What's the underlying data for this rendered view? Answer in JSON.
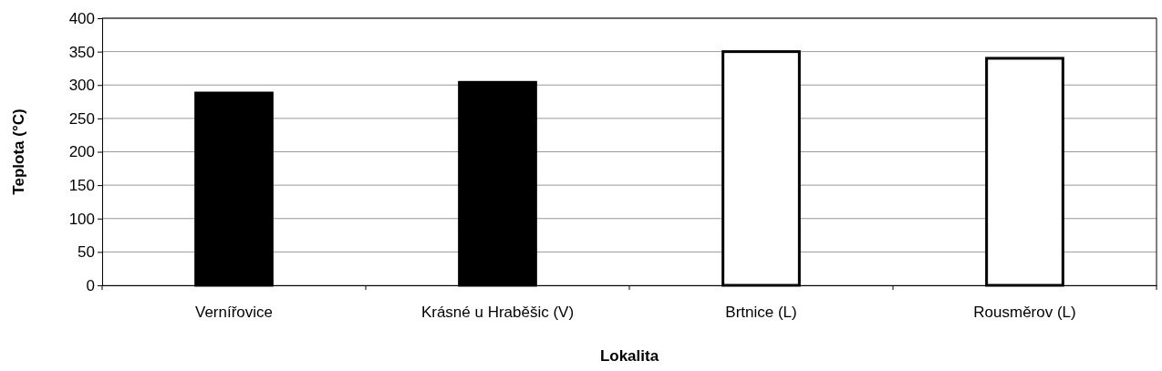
{
  "chart_data": {
    "type": "bar",
    "xlabel": "Lokalita",
    "ylabel": "Teplota (°C)",
    "categories": [
      "Vernířovice",
      "Krásné u Hraběšic (V)",
      "Brtnice (L)",
      "Rousměrov (L)"
    ],
    "values": [
      288,
      304,
      350,
      340
    ],
    "colors": [
      "#000000",
      "#000000",
      "#ffffff",
      "#ffffff"
    ],
    "ylim": [
      0,
      400
    ],
    "yticks": [
      0,
      50,
      100,
      150,
      200,
      250,
      300,
      350,
      400
    ],
    "grid": "y"
  }
}
